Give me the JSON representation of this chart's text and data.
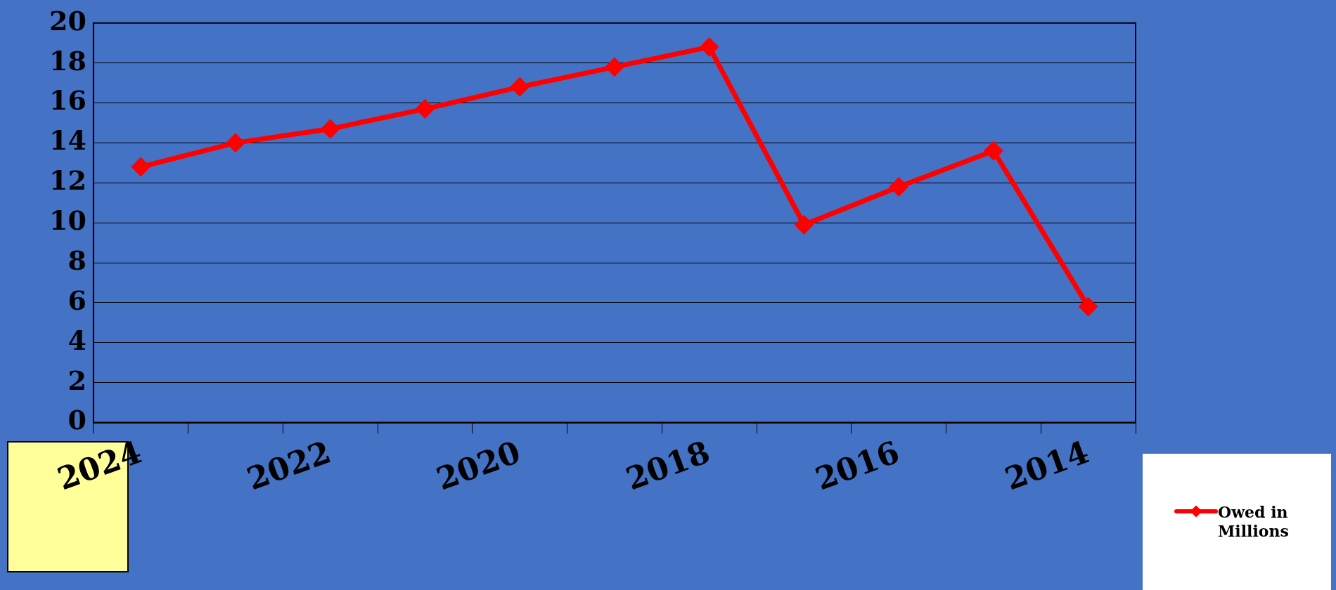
{
  "chart_data": {
    "type": "line",
    "categories": [
      "2024",
      null,
      "2022",
      null,
      "2020",
      null,
      "2018",
      null,
      "2016",
      null,
      "2014"
    ],
    "series": [
      {
        "name": "Owed in Millions",
        "color": "#ff0000",
        "values": [
          12.8,
          14.0,
          14.7,
          15.7,
          16.8,
          17.8,
          18.8,
          9.9,
          11.8,
          13.6,
          5.8
        ]
      }
    ],
    "ylim": [
      0,
      20
    ],
    "yticks": [
      0,
      2,
      4,
      6,
      8,
      10,
      12,
      14,
      16,
      18,
      20
    ],
    "grid": "y",
    "legend": "bottom right",
    "marker": "diamond",
    "line_style": "solid"
  }
}
